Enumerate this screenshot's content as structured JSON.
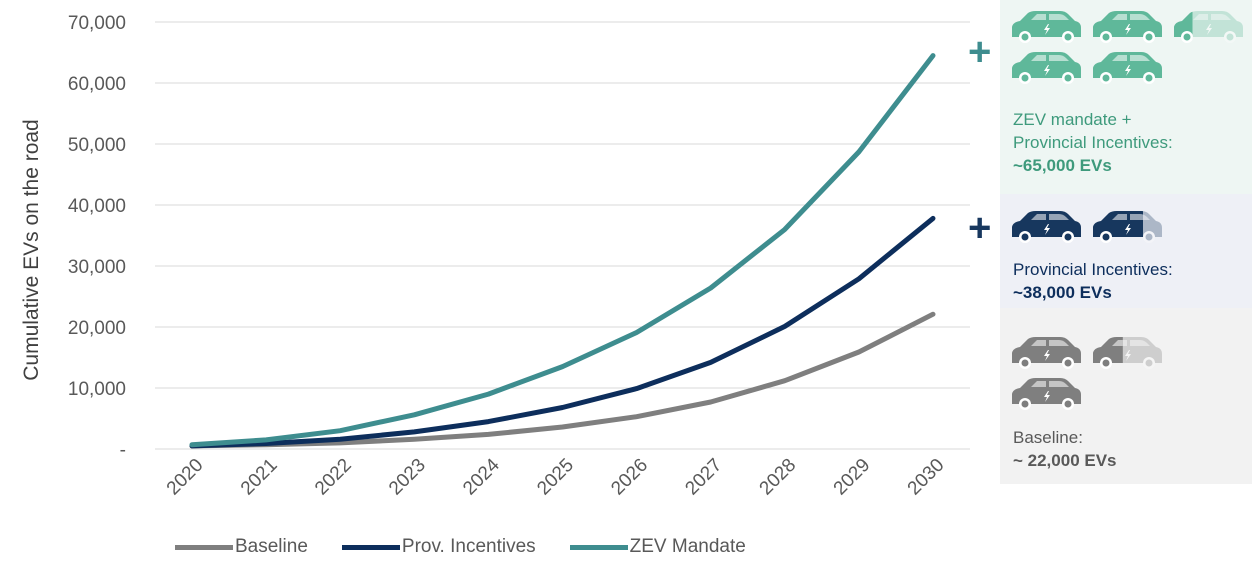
{
  "chart_data": {
    "type": "line",
    "categories": [
      "2020",
      "2021",
      "2022",
      "2023",
      "2024",
      "2025",
      "2026",
      "2027",
      "2028",
      "2029",
      "2030"
    ],
    "ylabel": "Cumulative EVs on the road",
    "ylim": [
      0,
      70000
    ],
    "yticks": [
      "-",
      "10,000",
      "20,000",
      "30,000",
      "40,000",
      "50,000",
      "60,000",
      "70,000"
    ],
    "grid": true,
    "legend_position": "bottom",
    "series": [
      {
        "name": "Baseline",
        "color": "#7f7f7f",
        "values": [
          500,
          700,
          1000,
          1600,
          2400,
          3600,
          5300,
          7700,
          11200,
          15900,
          22100
        ]
      },
      {
        "name": "Prov. Incentives",
        "color": "#0d2e5c",
        "values": [
          500,
          900,
          1600,
          2800,
          4500,
          6800,
          9900,
          14200,
          20100,
          27900,
          37800
        ]
      },
      {
        "name": "ZEV Mandate",
        "color": "#3e8d8f",
        "values": [
          700,
          1500,
          3000,
          5600,
          9000,
          13500,
          19100,
          26400,
          36000,
          48700,
          64500
        ]
      }
    ]
  },
  "panels": {
    "zev": {
      "line1": "ZEV mandate +",
      "line2": "Provincial Incentives:",
      "line3": "~65,000 EVs",
      "color": "#5fb89a",
      "text_color": "#3e9a7c",
      "plus": "+"
    },
    "prov": {
      "line1": "Provincial Incentives:",
      "line2": "~38,000 EVs",
      "color": "#17375e",
      "text_color": "#0d2e5c",
      "plus": "+"
    },
    "base": {
      "line1": "Baseline:",
      "line2": "~ 22,000 EVs",
      "color": "#7f7f7f",
      "text_color": "#595959"
    }
  },
  "icons": {
    "car": "electric-car-icon"
  }
}
